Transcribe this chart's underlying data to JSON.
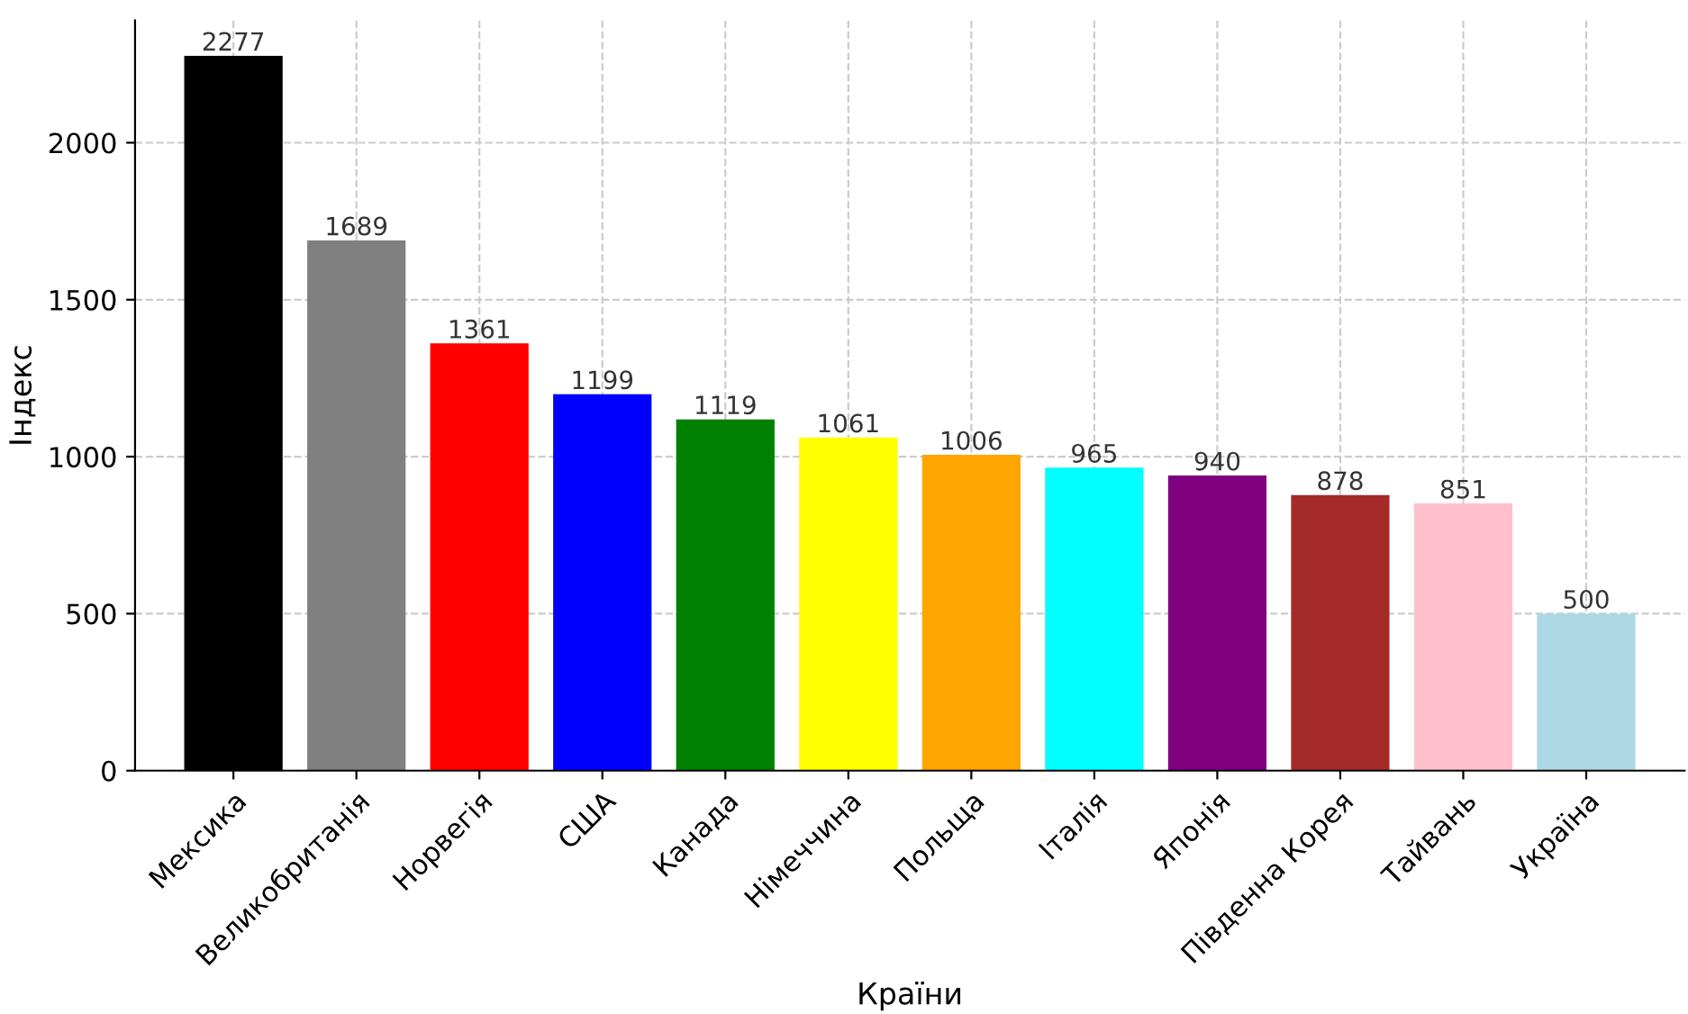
{
  "chart_data": {
    "type": "bar",
    "xlabel": "Країни",
    "ylabel": "Індекс",
    "categories": [
      "Мексика",
      "Великобританія",
      "Норвегія",
      "США",
      "Канада",
      "Німеччина",
      "Польща",
      "Італія",
      "Японія",
      "Південна Корея",
      "Тайвань",
      "Україна"
    ],
    "values": [
      2277,
      1689,
      1361,
      1199,
      1119,
      1061,
      1006,
      965,
      940,
      878,
      851,
      500
    ],
    "colors": [
      "#000000",
      "#808080",
      "#ff0000",
      "#0000ff",
      "#008000",
      "#ffff00",
      "#ffa500",
      "#00ffff",
      "#800080",
      "#a52a2a",
      "#ffc0cb",
      "#add8e6"
    ],
    "ylim": [
      0,
      2390
    ],
    "yticks": [
      0,
      500,
      1000,
      1500,
      2000
    ],
    "grid": true,
    "data_labels": true
  }
}
